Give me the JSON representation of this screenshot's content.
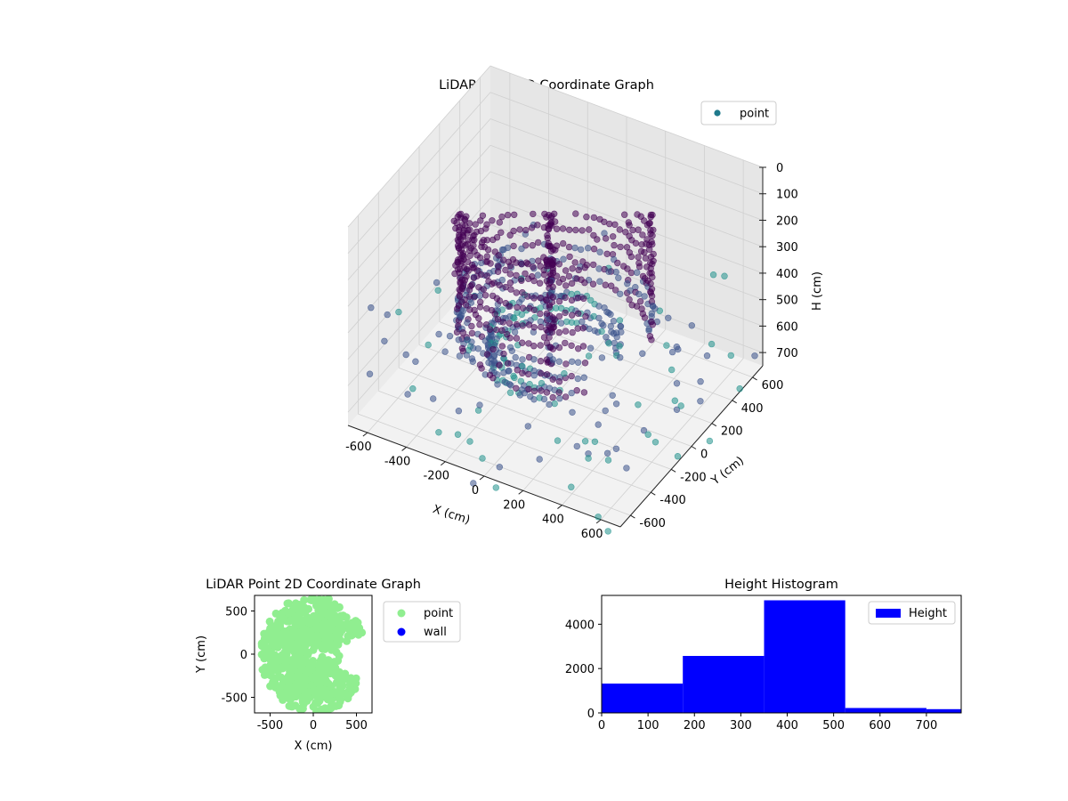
{
  "figure": {
    "background": "#ffffff"
  },
  "chart_data": [
    {
      "id": "scatter3d",
      "type": "scatter",
      "projection": "3d",
      "title": "LiDAR Point 3D Coordinate Graph",
      "xlabel": "X (cm)",
      "ylabel": "Y (cm)",
      "zlabel": "H (cm)",
      "xlim": [
        -700,
        700
      ],
      "ylim": [
        -700,
        700
      ],
      "zlim": [
        750,
        0
      ],
      "x_ticks": [
        -600,
        -400,
        -200,
        0,
        200,
        400,
        600
      ],
      "y_ticks": [
        -600,
        -400,
        -200,
        0,
        200,
        400,
        600
      ],
      "z_ticks": [
        0,
        100,
        200,
        300,
        400,
        500,
        600,
        700
      ],
      "legend": {
        "position": "top-right",
        "entries": [
          {
            "label": "point",
            "color": "#1f7a8c"
          }
        ]
      },
      "colormap": [
        "#440154",
        "#3b528b",
        "#21918c",
        "#5ec962"
      ],
      "scene": "dense curved wall of points forming a partial ring around the origin, with a vertical column near the center and sparse scattered outlier points",
      "approx_points": 9400
    },
    {
      "id": "scatter2d",
      "type": "scatter",
      "title": "LiDAR Point 2D Coordinate Graph",
      "xlabel": "X (cm)",
      "ylabel": "Y (cm)",
      "xlim": [
        -680,
        680
      ],
      "ylim": [
        -680,
        680
      ],
      "x_ticks": [
        -500,
        0,
        500
      ],
      "y_ticks": [
        -500,
        0,
        500
      ],
      "legend": {
        "position": "right",
        "entries": [
          {
            "label": "point",
            "color": "#90ee90"
          },
          {
            "label": "wall",
            "color": "#0000ff"
          }
        ]
      },
      "series": [
        {
          "name": "point",
          "color": "#90ee90"
        },
        {
          "name": "wall",
          "color": "#0000ff"
        }
      ]
    },
    {
      "id": "histogram",
      "type": "bar",
      "title": "Height Histogram",
      "xlim": [
        0,
        775
      ],
      "ylim": [
        0,
        5300
      ],
      "x_ticks": [
        0,
        100,
        200,
        300,
        400,
        500,
        600,
        700
      ],
      "y_ticks": [
        0,
        2000,
        4000
      ],
      "legend": {
        "position": "top-right",
        "entries": [
          {
            "label": "Height",
            "color": "#0000ff"
          }
        ]
      },
      "series": [
        {
          "name": "Height",
          "color": "#0000ff",
          "bins": [
            {
              "start": 0,
              "end": 175,
              "count": 1320
            },
            {
              "start": 175,
              "end": 350,
              "count": 2570
            },
            {
              "start": 350,
              "end": 525,
              "count": 5080
            },
            {
              "start": 525,
              "end": 700,
              "count": 220
            },
            {
              "start": 700,
              "end": 775,
              "count": 170
            }
          ]
        }
      ]
    }
  ]
}
